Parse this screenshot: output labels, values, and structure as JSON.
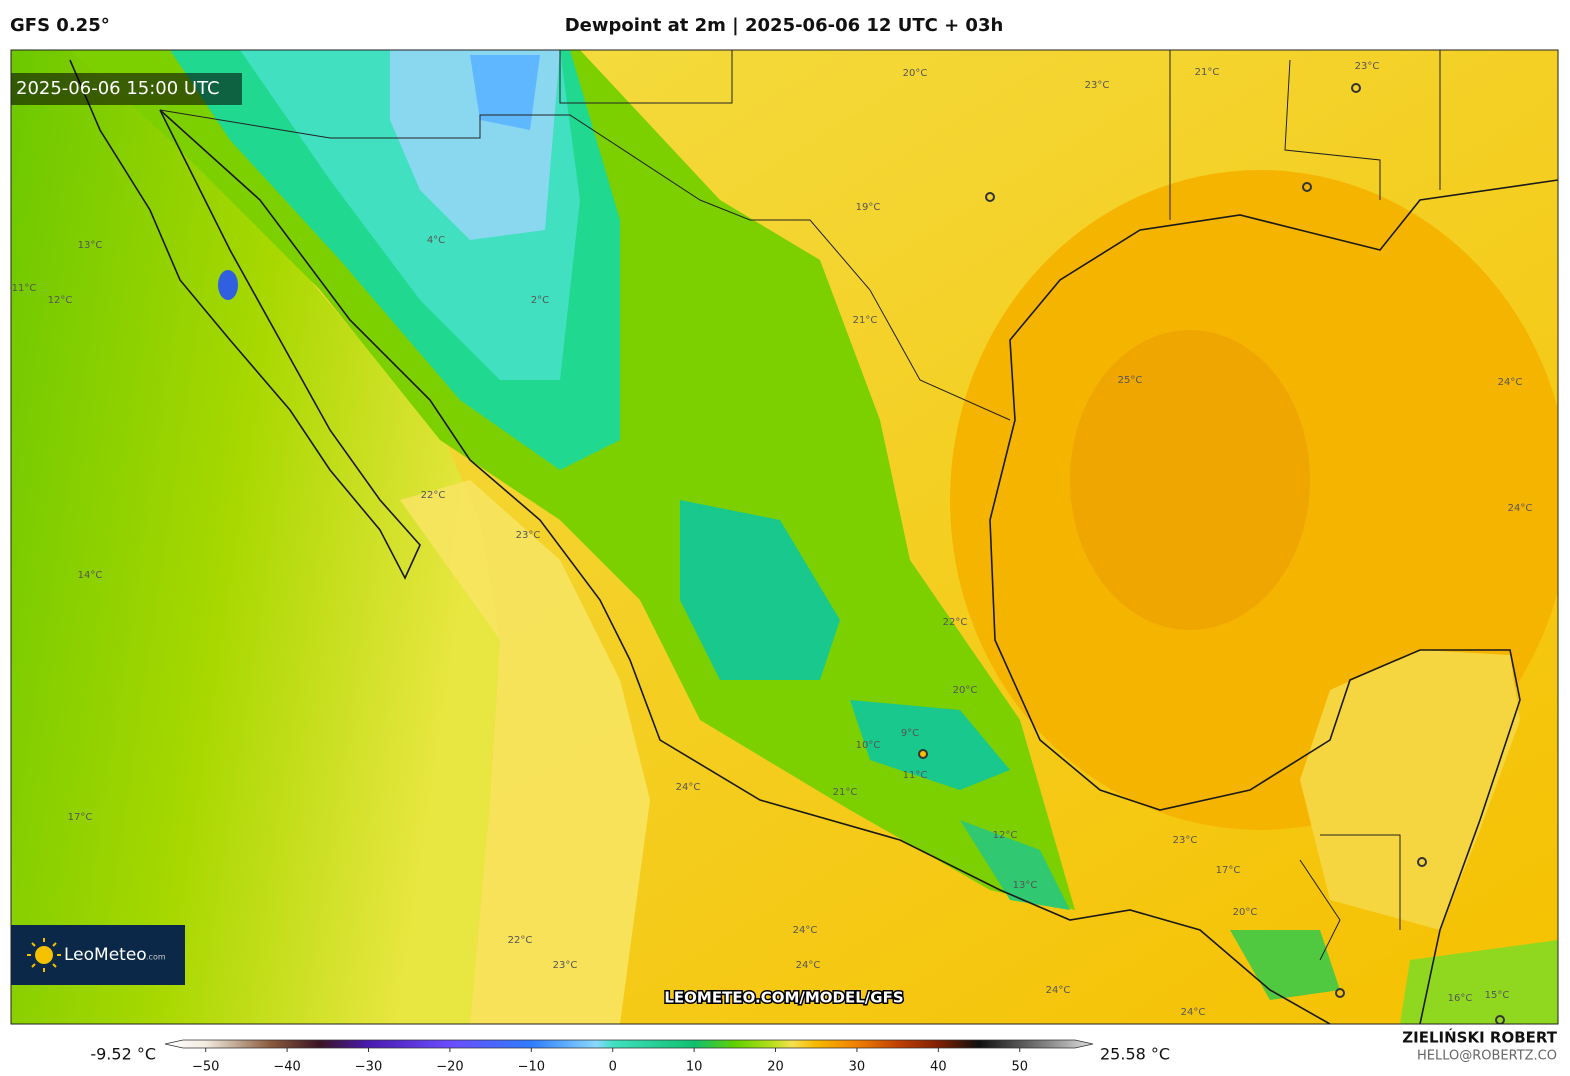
{
  "header": {
    "model": "GFS 0.25°",
    "title": "Dewpoint at 2m | 2025-06-06 12 UTC + 03h"
  },
  "map": {
    "valid_time": "2025-06-06 15:00 UTC",
    "watermark": "LEOMETEO.COM/MODEL/GFS",
    "logo": "LeoMeteo",
    "logo_suffix": ".com",
    "contour_labels": [
      "20°C",
      "23°C",
      "21°C",
      "23°C",
      "19°C",
      "21°C",
      "25°C",
      "24°C",
      "24°C",
      "22°C",
      "23°C",
      "14°C",
      "17°C",
      "22°C",
      "23°C",
      "24°C",
      "24°C",
      "21°C",
      "24°C",
      "11°C",
      "12°C",
      "13°C",
      "22°C",
      "20°C",
      "23°C",
      "17°C",
      "20°C",
      "16°C",
      "15°C",
      "24°C",
      "24°C",
      "4°C",
      "2°C",
      "12°C",
      "13°C",
      "11°C",
      "9°C",
      "10°C"
    ]
  },
  "colorbar": {
    "min_label": "-9.52 °C",
    "max_label": "25.58 °C",
    "range": [
      -55,
      59
    ],
    "ticks": [
      {
        "value": -50,
        "label": "−50"
      },
      {
        "value": -40,
        "label": "−40"
      },
      {
        "value": -30,
        "label": "−30"
      },
      {
        "value": -20,
        "label": "−20"
      },
      {
        "value": -10,
        "label": "−10"
      },
      0,
      10,
      20,
      30,
      40,
      50
    ]
  },
  "credit": {
    "name": "ZIELIŃSKI ROBERT",
    "email": "HELLO@ROBERTZ.CO"
  }
}
